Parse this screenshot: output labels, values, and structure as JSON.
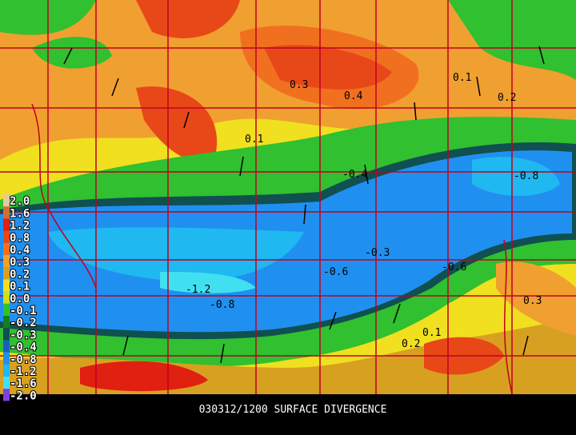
{
  "title": "030312/1200 SURFACE DIVERGENCE",
  "legend": [
    {
      "label": "2.0",
      "color": "#e8c8a0"
    },
    {
      "label": "1.6",
      "color": "#d07030"
    },
    {
      "label": "1.2",
      "color": "#e02010"
    },
    {
      "label": "0.8",
      "color": "#e84818"
    },
    {
      "label": "0.4",
      "color": "#f07020"
    },
    {
      "label": "0.3",
      "color": "#f0a030"
    },
    {
      "label": "0.2",
      "color": "#d8a020"
    },
    {
      "label": "0.1",
      "color": "#f0e020"
    },
    {
      "label": "0.0",
      "color": "#c8e020"
    },
    {
      "label": "-0.1",
      "color": "#30c030"
    },
    {
      "label": "-0.2",
      "color": "#108020"
    },
    {
      "label": "-0.3",
      "color": "#105050"
    },
    {
      "label": "-0.4",
      "color": "#1860c0"
    },
    {
      "label": "-0.8",
      "color": "#2090f0"
    },
    {
      "label": "-1.2",
      "color": "#20b8f0"
    },
    {
      "label": "-1.6",
      "color": "#40e0f0"
    },
    {
      "label": "-2.0",
      "color": "#8040e0"
    }
  ],
  "contour_labels": [
    "-1.2",
    "-0.8",
    "0.3",
    "0.4",
    "-0.8",
    "0.2",
    "0.1",
    "-0.6",
    "-0.3",
    "0.3",
    "0.2",
    "0.1",
    "-0.6",
    "0.1",
    "-0.4"
  ]
}
